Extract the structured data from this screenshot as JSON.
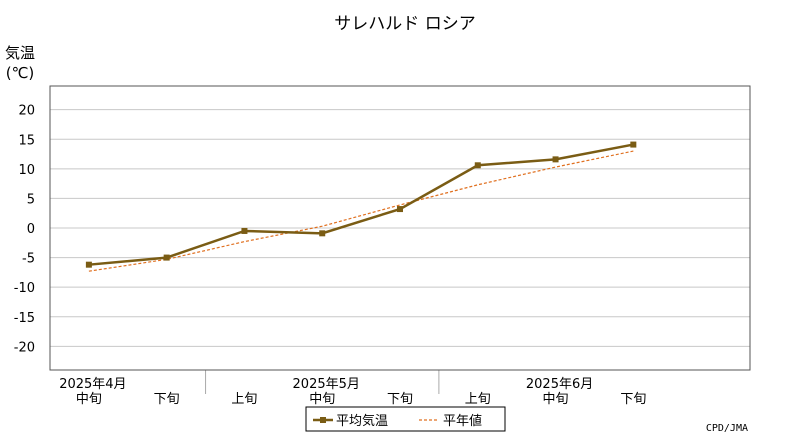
{
  "chart_data": {
    "type": "line",
    "title": "サレハルド ロシア",
    "ylabel_line1": "気温",
    "ylabel_line2": "(℃)",
    "ylim": [
      -24,
      24
    ],
    "yticks": [
      20,
      15,
      10,
      5,
      0,
      -5,
      -10,
      -15,
      -20
    ],
    "grid": true,
    "x": [
      "2025年4月 中旬",
      "2025年4月 下旬",
      "2025年5月 上旬",
      "2025年5月 中旬",
      "2025年5月 下旬",
      "2025年6月 上旬",
      "2025年6月 中旬",
      "2025年6月 下旬"
    ],
    "xtick_labels": [
      "中旬",
      "下旬",
      "上旬",
      "中旬",
      "下旬",
      "上旬",
      "中旬",
      "下旬"
    ],
    "month_labels": [
      {
        "label": "2025年4月",
        "index": 0
      },
      {
        "label": "2025年5月",
        "index": 3
      },
      {
        "label": "2025年6月",
        "index": 6
      }
    ],
    "series": [
      {
        "name": "平均気温",
        "color": "#7a5c14",
        "style": "solid",
        "marker": "square",
        "values": [
          -6.2,
          -5.0,
          -0.5,
          -0.9,
          3.2,
          10.6,
          11.6,
          14.1
        ]
      },
      {
        "name": "平年値",
        "color": "#e07020",
        "style": "dashed",
        "marker": "none",
        "values": [
          -7.3,
          -5.3,
          -2.3,
          0.3,
          3.9,
          7.3,
          10.3,
          13.0
        ]
      }
    ],
    "legend_position": "bottom-center",
    "credit": "CPD/JMA"
  }
}
